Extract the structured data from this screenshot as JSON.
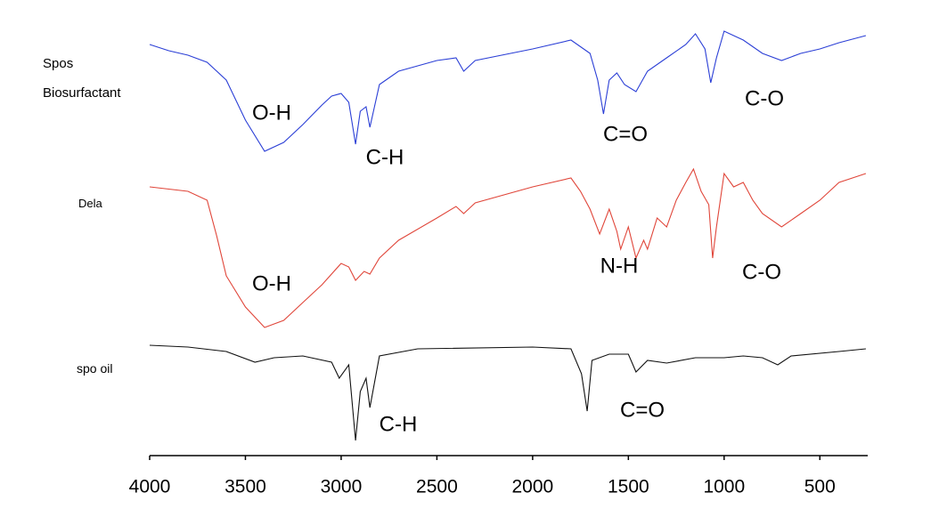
{
  "chart_data": {
    "type": "line",
    "xlim": [
      4000,
      250
    ],
    "xticks": [
      4000,
      3500,
      3000,
      2500,
      2000,
      1500,
      1000,
      500
    ],
    "ylim": [
      0,
      100
    ],
    "series": [
      {
        "name": "Spos Biosurfactant",
        "color": "#2b3fd6",
        "x": [
          4000,
          3900,
          3800,
          3700,
          3600,
          3500,
          3400,
          3300,
          3200,
          3100,
          3050,
          3000,
          2960,
          2925,
          2900,
          2870,
          2850,
          2800,
          2700,
          2500,
          2400,
          2360,
          2300,
          2000,
          1800,
          1700,
          1660,
          1630,
          1600,
          1560,
          1520,
          1460,
          1400,
          1300,
          1200,
          1150,
          1100,
          1070,
          1040,
          1000,
          950,
          900,
          800,
          700,
          600,
          500,
          400,
          260
        ],
        "values": [
          96,
          94.6,
          93.6,
          92,
          88,
          79,
          72,
          74,
          78,
          82.4,
          84.4,
          85,
          83,
          73.6,
          81,
          82,
          77.4,
          87,
          90,
          92.4,
          93,
          90,
          92.4,
          95,
          97,
          94,
          88,
          80.4,
          88,
          89.6,
          87,
          85.4,
          90,
          93,
          96,
          98.4,
          95,
          87.4,
          93,
          99,
          98,
          97,
          94,
          92.4,
          94,
          95,
          96.4,
          98
        ]
      },
      {
        "name": "Dela",
        "color": "#e0463a",
        "x": [
          4000,
          3800,
          3700,
          3650,
          3600,
          3500,
          3400,
          3300,
          3200,
          3100,
          3000,
          2960,
          2925,
          2880,
          2850,
          2800,
          2700,
          2500,
          2400,
          2360,
          2300,
          2000,
          1800,
          1750,
          1700,
          1650,
          1600,
          1560,
          1540,
          1500,
          1460,
          1420,
          1400,
          1350,
          1300,
          1250,
          1200,
          1160,
          1120,
          1080,
          1060,
          1040,
          1000,
          950,
          900,
          850,
          800,
          700,
          600,
          500,
          400,
          260
        ],
        "values": [
          64,
          63,
          61,
          53,
          44,
          37,
          32.4,
          34,
          38,
          42,
          46.8,
          46,
          43,
          45,
          44.4,
          48,
          52,
          57,
          59.6,
          58,
          60.4,
          64,
          66,
          63,
          59,
          53.4,
          59,
          54,
          50,
          55,
          48,
          52,
          50,
          57,
          55,
          61,
          65,
          68,
          63,
          60,
          48,
          55,
          67,
          64,
          65,
          61,
          58,
          55,
          58,
          61,
          65,
          67
        ]
      },
      {
        "name": "spo oil",
        "color": "#111111",
        "x": [
          4000,
          3800,
          3600,
          3450,
          3350,
          3200,
          3050,
          3010,
          2960,
          2925,
          2900,
          2870,
          2850,
          2800,
          2600,
          2000,
          1800,
          1745,
          1715,
          1690,
          1600,
          1500,
          1460,
          1400,
          1300,
          1150,
          1000,
          900,
          800,
          720,
          650,
          400,
          260
        ],
        "values": [
          28.4,
          28,
          27,
          24.6,
          25.6,
          26,
          24.6,
          21,
          24,
          7,
          18,
          21,
          14.4,
          26,
          27.6,
          28,
          27.6,
          22,
          13.6,
          25,
          26.4,
          26.4,
          22.4,
          25,
          24.4,
          25.6,
          25.6,
          26,
          25.6,
          24,
          26,
          27,
          27.6
        ]
      }
    ],
    "annotations": [
      "O-H",
      "C-H",
      "C=O",
      "C-O",
      "O-H",
      "N-H",
      "C-O",
      "C-H",
      "C=O"
    ]
  }
}
